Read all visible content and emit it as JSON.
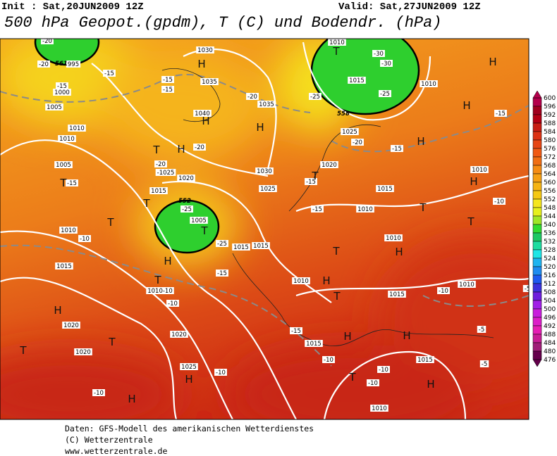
{
  "header": {
    "init": "Init : Sat,20JUN2009 12Z",
    "valid": "Valid: Sat,27JUN2009 12Z",
    "title": "500 hPa Geopot.(gpdm), T (C) und Bodendr. (hPa)"
  },
  "legend": {
    "levels": [
      600,
      596,
      592,
      588,
      584,
      580,
      576,
      572,
      568,
      564,
      560,
      556,
      552,
      548,
      544,
      540,
      536,
      532,
      528,
      524,
      520,
      516,
      512,
      508,
      504,
      500,
      496,
      492,
      488,
      484,
      480,
      476
    ],
    "colors": [
      "#b4004b",
      "#a0001e",
      "#b40014",
      "#c81e14",
      "#dc3214",
      "#e64614",
      "#f05a14",
      "#f06e14",
      "#f58c14",
      "#f5a014",
      "#f5b414",
      "#f5c814",
      "#f5e61e",
      "#e6f01e",
      "#a0e628",
      "#32dc32",
      "#1ec864",
      "#1edca0",
      "#1ee6e6",
      "#1eb4f0",
      "#1e8cf0",
      "#1e5af0",
      "#3c32dc",
      "#6e1edc",
      "#a01ee6",
      "#c81edc",
      "#dc1ec8",
      "#e61eb4",
      "#c81e96",
      "#a01e78",
      "#64004b"
    ]
  },
  "map": {
    "isobar_labels": [
      "-20",
      "-20",
      "995",
      "-15",
      "-15",
      "1000",
      "-15",
      "-15",
      "1030",
      "1035",
      "-20",
      "1035",
      "1005",
      "1010",
      "1040",
      "1010",
      "-20",
      "-20",
      "-1025",
      "1020",
      "1005",
      "-15",
      "1015",
      "-25",
      "1005",
      "-25",
      "1010",
      "-10",
      "1015",
      "1015",
      "1015",
      "-15",
      "1010-10",
      "-10",
      "1020",
      "1020",
      "1020",
      "1025",
      "-10",
      "-10",
      "1030",
      "1025",
      "1020",
      "-15",
      "-15",
      "1010",
      "1015",
      "1010",
      "1015",
      "1010",
      "-10",
      "1010",
      "1015",
      "-15",
      "-10",
      "1015",
      "-10",
      "-10",
      "1010",
      "-5",
      "-5",
      "-10",
      "1010",
      "-15",
      "1010",
      "1010",
      "-30",
      "-30",
      "1015",
      "-25",
      "-25",
      "1025",
      "-20",
      "-15",
      "-5"
    ],
    "contour_labels": [
      "561",
      "552",
      "558"
    ],
    "pressure_centers": [
      "H",
      "H",
      "H",
      "H",
      "T",
      "T",
      "T",
      "T",
      "T",
      "H",
      "T",
      "H",
      "T",
      "T",
      "H",
      "H",
      "T",
      "H",
      "H",
      "H",
      "T",
      "H",
      "T",
      "T",
      "H",
      "T",
      "H",
      "T",
      "H",
      "H",
      "T",
      "H"
    ]
  },
  "footer": {
    "lines": [
      "Daten: GFS-Modell des amerikanischen Wetterdienstes",
      "(C) Wetterzentrale",
      "www.wetterzentrale.de"
    ]
  }
}
